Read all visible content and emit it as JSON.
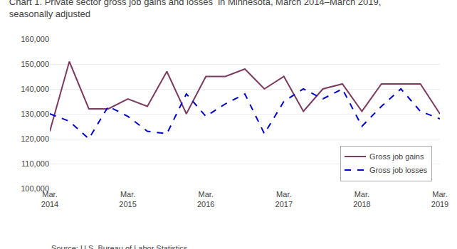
{
  "chart_data": {
    "type": "line",
    "title": "Chart 1. Private sector gross job gains and losses  in Minnesota, March 2014–March 2019,\nseasonally adjusted",
    "annotations": [
      "Source: U.S. Bureau of Labor Statistics."
    ],
    "categories": [
      "Mar.\n2014",
      null,
      null,
      null,
      "Mar.\n2015",
      null,
      null,
      null,
      "Mar.\n2016",
      null,
      null,
      null,
      "Mar.\n2017",
      null,
      null,
      null,
      "Mar.\n2018",
      null,
      null,
      null,
      "Mar.\n2019"
    ],
    "series": [
      {
        "name": "Gross job gains",
        "color": "#7B3B5E",
        "line_style": "solid",
        "values": [
          123000,
          151000,
          132000,
          132000,
          136000,
          133000,
          147000,
          130000,
          145000,
          145000,
          148000,
          140000,
          145000,
          131000,
          140000,
          142000,
          131000,
          142000,
          142000,
          142000,
          130000
        ]
      },
      {
        "name": "Gross job losses",
        "color": "#0000CC",
        "line_style": "dashed",
        "values": [
          130000,
          127000,
          120000,
          133000,
          129000,
          123000,
          122000,
          138000,
          129000,
          134000,
          138000,
          122000,
          135000,
          140000,
          136000,
          140000,
          125000,
          133000,
          140000,
          131000,
          128000
        ]
      }
    ],
    "ylim": [
      100000,
      160000
    ],
    "yticks": [
      {
        "value": 100000,
        "label": "100,000"
      },
      {
        "value": 110000,
        "label": "110,000"
      },
      {
        "value": 120000,
        "label": "120,000"
      },
      {
        "value": 130000,
        "label": "130,000"
      },
      {
        "value": 140000,
        "label": "140,000"
      },
      {
        "value": 150000,
        "label": "150,000"
      },
      {
        "value": 160000,
        "label": "160,000"
      }
    ],
    "grid": true,
    "legend": "lower right"
  }
}
